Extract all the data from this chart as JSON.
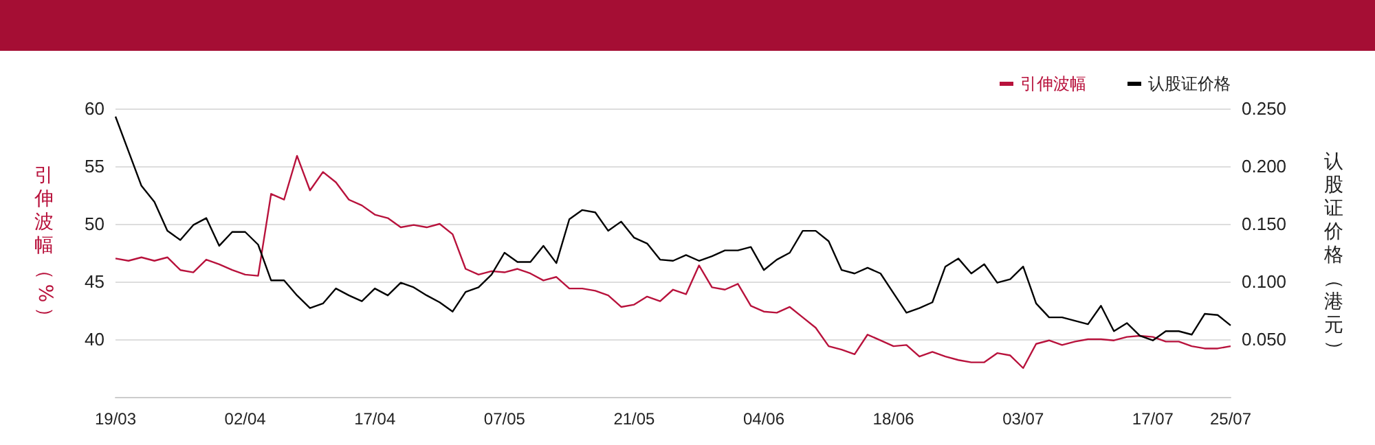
{
  "chart_data": {
    "type": "line",
    "categories": [
      "19/03",
      null,
      null,
      null,
      null,
      null,
      null,
      null,
      null,
      null,
      "02/04",
      null,
      null,
      null,
      null,
      null,
      null,
      null,
      null,
      null,
      "17/04",
      null,
      null,
      null,
      null,
      null,
      null,
      null,
      null,
      null,
      "07/05",
      null,
      null,
      null,
      null,
      null,
      null,
      null,
      null,
      null,
      "21/05",
      null,
      null,
      null,
      null,
      null,
      null,
      null,
      null,
      null,
      "04/06",
      null,
      null,
      null,
      null,
      null,
      null,
      null,
      null,
      null,
      "18/06",
      null,
      null,
      null,
      null,
      null,
      null,
      null,
      null,
      null,
      "03/07",
      null,
      null,
      null,
      null,
      null,
      null,
      null,
      null,
      null,
      "17/07",
      null,
      null,
      null,
      null,
      null,
      "25/07"
    ],
    "series": [
      {
        "name": "引伸波幅",
        "color": "#b8123c",
        "values": [
          47.0,
          46.8,
          47.1,
          46.8,
          47.1,
          46.0,
          45.8,
          46.9,
          46.5,
          46.0,
          45.6,
          45.5,
          52.6,
          52.1,
          55.9,
          52.9,
          54.5,
          53.6,
          52.1,
          51.6,
          50.8,
          50.5,
          49.7,
          49.9,
          49.7,
          50.0,
          49.1,
          46.1,
          45.6,
          45.9,
          45.8,
          46.1,
          45.7,
          45.1,
          45.4,
          44.4,
          44.4,
          44.2,
          43.8,
          42.8,
          43.0,
          43.7,
          43.3,
          44.3,
          43.9,
          46.4,
          44.5,
          44.3,
          44.8,
          42.9,
          42.4,
          42.3,
          42.8,
          41.9,
          41.0,
          39.4,
          39.1,
          38.7,
          40.4,
          39.9,
          39.4,
          39.5,
          38.5,
          38.9,
          38.5,
          38.2,
          38.0,
          38.0,
          38.8,
          38.6,
          37.5,
          39.6,
          39.9,
          39.5,
          39.8,
          40.0,
          40.0,
          39.9,
          40.2,
          40.3,
          40.2,
          39.8,
          39.8,
          39.4,
          39.2,
          39.2,
          39.4
        ]
      },
      {
        "name": "认股证价格",
        "color": "#000000",
        "axis": "y2",
        "values": [
          0.243,
          0.213,
          0.183,
          0.169,
          0.144,
          0.136,
          0.149,
          0.155,
          0.131,
          0.143,
          0.143,
          0.132,
          0.101,
          0.101,
          0.088,
          0.077,
          0.081,
          0.094,
          0.088,
          0.083,
          0.094,
          0.088,
          0.099,
          0.095,
          0.088,
          0.082,
          0.074,
          0.091,
          0.095,
          0.106,
          0.125,
          0.117,
          0.117,
          0.131,
          0.116,
          0.154,
          0.162,
          0.16,
          0.144,
          0.152,
          0.138,
          0.133,
          0.119,
          0.118,
          0.123,
          0.118,
          0.122,
          0.127,
          0.127,
          0.13,
          0.11,
          0.119,
          0.125,
          0.144,
          0.144,
          0.135,
          0.11,
          0.107,
          0.112,
          0.107,
          0.09,
          0.073,
          0.077,
          0.082,
          0.113,
          0.12,
          0.107,
          0.115,
          0.099,
          0.102,
          0.113,
          0.081,
          0.069,
          0.069,
          0.066,
          0.063,
          0.079,
          0.057,
          0.064,
          0.053,
          0.049,
          0.057,
          0.057,
          0.054,
          0.072,
          0.071,
          0.062
        ]
      }
    ],
    "ylabel": "引伸波幅（%）",
    "y2label": "认股证价格（港元）",
    "ylim": [
      35,
      60
    ],
    "yticks": [
      {
        "value": 35,
        "label": null
      },
      40,
      45,
      50,
      55,
      60
    ],
    "y2lim": [
      0,
      0.25
    ],
    "y2ticks": [
      {
        "value": 0,
        "label": null
      },
      {
        "value": 0.05,
        "label": "0.050"
      },
      {
        "value": 0.1,
        "label": "0.100"
      },
      {
        "value": 0.15,
        "label": "0.150"
      },
      {
        "value": 0.2,
        "label": "0.200"
      },
      {
        "value": 0.25,
        "label": "0.250"
      }
    ],
    "grid": "y",
    "legend": "top right",
    "marker": "none",
    "line_style": "solid"
  }
}
